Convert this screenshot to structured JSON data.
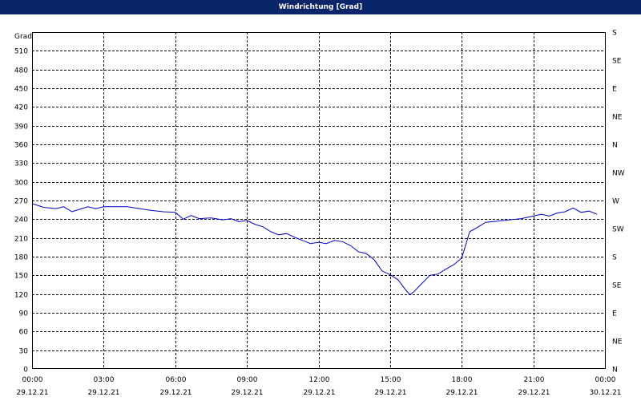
{
  "window": {
    "title": "Windrichtung [Grad]"
  },
  "colors": {
    "title_bar": "#0a246a",
    "series": "#0000c8"
  },
  "chart_data": {
    "type": "line",
    "title": "Windrichtung [Grad]",
    "ylabel": "Grad",
    "ylim": [
      0,
      540
    ],
    "xlim": [
      "2021-12-29 00:00",
      "2021-12-30 00:00"
    ],
    "grid": true,
    "y_ticks_left": [
      "0",
      "30",
      "60",
      "90",
      "120",
      "150",
      "180",
      "210",
      "240",
      "270",
      "300",
      "330",
      "360",
      "390",
      "420",
      "450",
      "480",
      "510"
    ],
    "y_ticks_right": [
      "N",
      "NE",
      "E",
      "SE",
      "S",
      "SW",
      "W",
      "NW",
      "N",
      "NE",
      "E",
      "SE",
      "S"
    ],
    "x_ticks": [
      {
        "time": "00:00",
        "date": "29.12.21"
      },
      {
        "time": "03:00",
        "date": "29.12.21"
      },
      {
        "time": "06:00",
        "date": "29.12.21"
      },
      {
        "time": "09:00",
        "date": "29.12.21"
      },
      {
        "time": "12:00",
        "date": "29.12.21"
      },
      {
        "time": "15:00",
        "date": "29.12.21"
      },
      {
        "time": "18:00",
        "date": "29.12.21"
      },
      {
        "time": "21:00",
        "date": "29.12.21"
      },
      {
        "time": "00:00",
        "date": "30.12.21"
      }
    ],
    "series": [
      {
        "x": [
          "00:00",
          "00:30",
          "01:00",
          "01:20",
          "01:40",
          "02:00",
          "02:20",
          "02:40",
          "03:00",
          "03:30",
          "04:00",
          "04:30",
          "05:00",
          "05:30",
          "06:00",
          "06:20",
          "06:40",
          "07:00",
          "07:30",
          "08:00",
          "08:20",
          "08:40",
          "09:00",
          "09:20",
          "09:40",
          "10:00",
          "10:20",
          "10:40",
          "11:00",
          "11:20",
          "11:40",
          "12:00",
          "12:20",
          "12:40",
          "13:00",
          "13:20",
          "13:40",
          "14:00",
          "14:20",
          "14:40",
          "15:00",
          "15:20",
          "15:40",
          "15:50",
          "16:00",
          "16:20",
          "16:40",
          "17:00",
          "17:20",
          "17:40",
          "18:00",
          "18:20",
          "18:40",
          "19:00",
          "19:30",
          "20:00",
          "20:30",
          "21:00",
          "21:20",
          "21:40",
          "22:00",
          "22:20",
          "22:40",
          "23:00",
          "23:20",
          "23:40"
        ],
        "y": [
          265,
          259,
          257,
          260,
          252,
          256,
          260,
          257,
          260,
          260,
          260,
          257,
          254,
          252,
          251,
          240,
          246,
          241,
          242,
          239,
          241,
          236,
          238,
          232,
          228,
          220,
          215,
          217,
          211,
          206,
          201,
          203,
          201,
          206,
          204,
          198,
          188,
          185,
          175,
          157,
          151,
          143,
          126,
          119,
          124,
          137,
          150,
          152,
          160,
          167,
          178,
          220,
          227,
          235,
          237,
          239,
          241,
          245,
          248,
          245,
          250,
          252,
          258,
          251,
          253,
          248
        ]
      }
    ]
  }
}
